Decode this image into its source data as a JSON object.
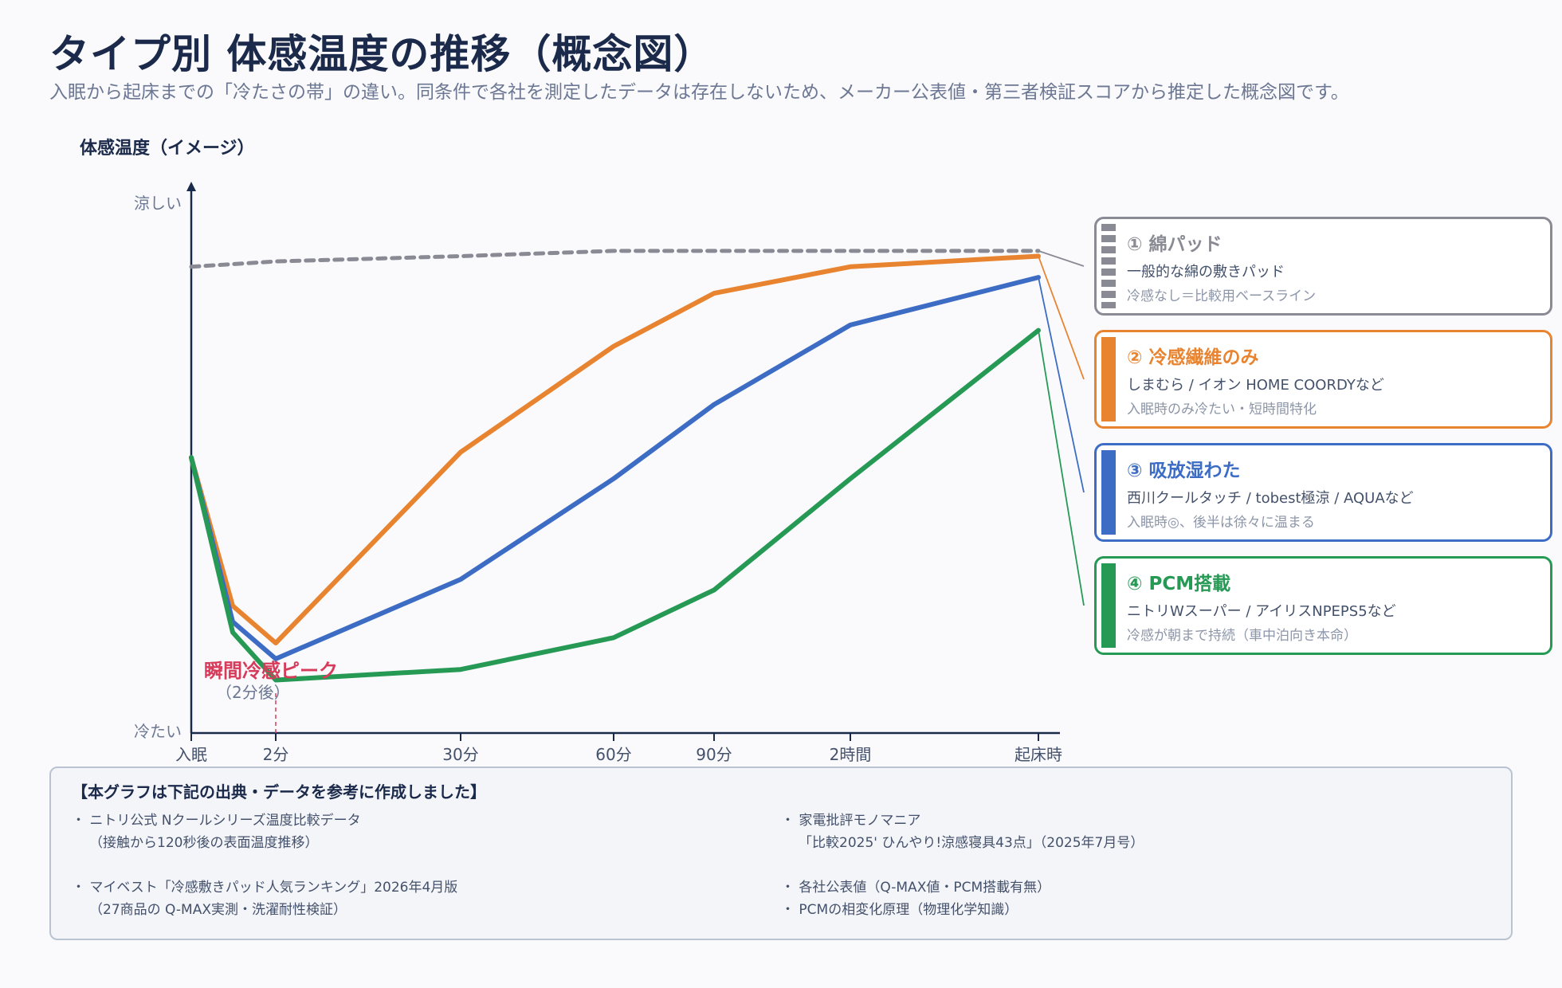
{
  "header": {
    "title": "タイプ別 体感温度の推移（概念図）",
    "subtitle": "入眠から起床までの「冷たさの帯」の違い。同条件で各社を測定したデータは存在しないため、メーカー公表値・第三者検証スコアから推定した概念図です。"
  },
  "colors": {
    "cotton": "#8a8a94",
    "fiber": "#e8832f",
    "wet": "#3d6cc4",
    "pcm": "#269a55",
    "annotation": "#d63c5a",
    "axis": "#1b2a4a"
  },
  "chart_data": {
    "type": "line",
    "ylabel": "体感温度（イメージ）",
    "y_top_label": "涼しい",
    "y_bottom_label": "冷たい",
    "ylim": [
      0,
      100
    ],
    "x_label_units": "minutes",
    "xlim": [
      0,
      500
    ],
    "x_ticks": [
      {
        "x": 0,
        "label": "入眠"
      },
      {
        "x": 2,
        "label": "2分"
      },
      {
        "x": 30,
        "label": "30分"
      },
      {
        "x": 60,
        "label": "60分"
      },
      {
        "x": 90,
        "label": "90分"
      },
      {
        "x": 120,
        "label": "2時間"
      },
      {
        "x": 480,
        "label": "起床時"
      }
    ],
    "series": [
      {
        "key": "cotton",
        "name": "① 綿パッド",
        "style": "dashed",
        "points": [
          [
            0,
            88
          ],
          [
            2,
            89
          ],
          [
            30,
            90
          ],
          [
            60,
            91
          ],
          [
            90,
            91
          ],
          [
            120,
            91
          ],
          [
            480,
            91
          ]
        ]
      },
      {
        "key": "fiber",
        "name": "② 冷感繊維のみ",
        "points": [
          [
            0,
            52
          ],
          [
            1,
            24
          ],
          [
            2,
            17
          ],
          [
            30,
            53
          ],
          [
            60,
            73
          ],
          [
            90,
            83
          ],
          [
            120,
            88
          ],
          [
            480,
            90
          ]
        ]
      },
      {
        "key": "wet",
        "name": "③ 吸放湿わた",
        "points": [
          [
            0,
            52
          ],
          [
            1,
            21
          ],
          [
            2,
            14
          ],
          [
            30,
            29
          ],
          [
            60,
            48
          ],
          [
            90,
            62
          ],
          [
            120,
            77
          ],
          [
            480,
            86
          ]
        ]
      },
      {
        "key": "pcm",
        "name": "④ PCM搭載",
        "points": [
          [
            0,
            52
          ],
          [
            1,
            19
          ],
          [
            2,
            10
          ],
          [
            30,
            12
          ],
          [
            60,
            18
          ],
          [
            90,
            27
          ],
          [
            120,
            48
          ],
          [
            480,
            76
          ]
        ]
      }
    ],
    "annotations": [
      {
        "x": 2,
        "text": "瞬間冷感ピーク",
        "subtext": "（2分後）"
      }
    ]
  },
  "legend": [
    {
      "key": "cotton",
      "name": "① 綿パッド",
      "desc": "一般的な綿の敷きパッド",
      "note": "冷感なし＝比較用ベースライン"
    },
    {
      "key": "fiber",
      "name": "② 冷感繊維のみ",
      "desc": "しまむら / イオン HOME COORDYなど",
      "note": "入眠時のみ冷たい・短時間特化"
    },
    {
      "key": "wet",
      "name": "③ 吸放湿わた",
      "desc": "西川クールタッチ / tobest極涼 / AQUAなど",
      "note": "入眠時◎、後半は徐々に温まる"
    },
    {
      "key": "pcm",
      "name": "④ PCM搭載",
      "desc": "ニトリWスーパー / アイリスNPEPS5など",
      "note": "冷感が朝まで持続（車中泊向き本命）"
    }
  ],
  "sources": {
    "heading": "【本グラフは下記の出典・データを参考に作成しました】",
    "items": [
      {
        "line1": "・ ニトリ公式 Nクールシリーズ温度比較データ",
        "line2": "（接触から120秒後の表面温度推移）"
      },
      {
        "line1": "・ 家電批評モノマニア",
        "line2": "「比較2025' ひんやり!涼感寝具43点」（2025年7月号）"
      },
      {
        "line1": "・ マイベスト「冷感敷きパッド人気ランキング」2026年4月版",
        "line2": "（27商品の Q-MAX実測・洗濯耐性検証）"
      },
      {
        "line1": "・ 各社公表値（Q-MAX値・PCM搭載有無）",
        "line2": "・ PCMの相変化原理（物理化学知識）"
      }
    ]
  }
}
